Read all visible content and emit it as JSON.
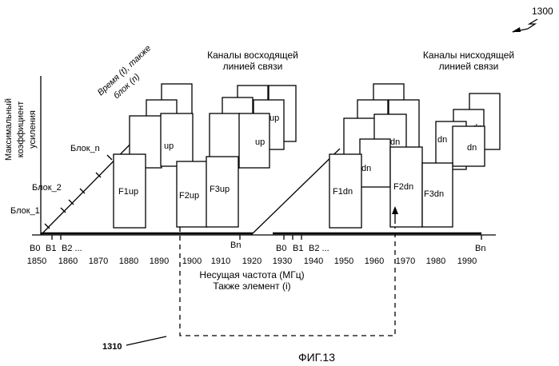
{
  "figure_number": "1300",
  "figure_caption": "ФИГ.13",
  "y_axis_label": [
    "Максимальный",
    "коэффициент",
    "усиления"
  ],
  "time_axis_label": [
    "Время (t), также",
    "блок (n)"
  ],
  "block_labels": [
    "Блок_1",
    "Блок_2",
    "Блок_n"
  ],
  "x_axis_label": [
    "Несущая частота (МГц)",
    "Также элемент (i)"
  ],
  "frequency_ticks": [
    "1850",
    "1860",
    "1870",
    "1880",
    "1890",
    "1900",
    "1910",
    "1920",
    "1930",
    "1940",
    "1950",
    "1960",
    "1970",
    "1980",
    "1990"
  ],
  "uplink": {
    "title": [
      "Каналы восходящей",
      "линией связи"
    ],
    "markers": [
      "B0",
      "B1",
      "B2 ...",
      "Bn"
    ],
    "channels": [
      "F1up",
      "F2up",
      "F3up"
    ],
    "stack_label": "up"
  },
  "downlink": {
    "title": [
      "Каналы нисходящей",
      "линией связи"
    ],
    "markers": [
      "B0",
      "B1",
      "B2 ...",
      "Bn"
    ],
    "channels": [
      "F1dn",
      "F2dn",
      "F3dn"
    ],
    "stack_label": "dn"
  },
  "element_ref": "1310"
}
